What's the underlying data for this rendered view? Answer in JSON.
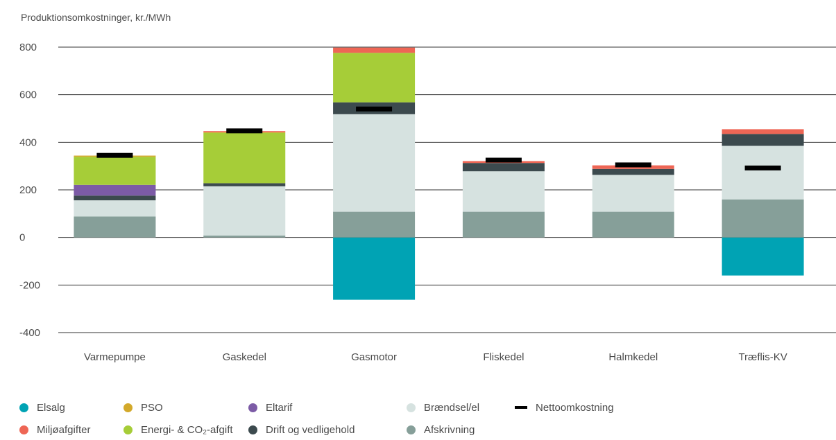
{
  "chart_data": {
    "type": "stacked-bar",
    "ylabel": "Produktionsomkostninger, kr./MWh",
    "ylim": [
      -400,
      800
    ],
    "yticks": [
      800,
      600,
      400,
      200,
      0,
      -200,
      -400
    ],
    "ytick_labels": [
      "800",
      "600",
      "400",
      "200",
      "0",
      "-200",
      "-400"
    ],
    "grid": true,
    "legend_position": "bottom",
    "categories": [
      "Varmepumpe",
      "Gaskedel",
      "Gasmotor",
      "Fliskedel",
      "Halmkedel",
      "Træflis-KV"
    ],
    "series": [
      {
        "name": "Elsalg",
        "color": "#00a3b4",
        "values": [
          0,
          0,
          -262,
          0,
          0,
          -160
        ]
      },
      {
        "name": "Afskrivning",
        "color": "#869f99",
        "values": [
          88,
          8,
          108,
          108,
          108,
          160
        ]
      },
      {
        "name": "Brændsel/el",
        "color": "#d6e2e0",
        "values": [
          68,
          207,
          410,
          170,
          155,
          225
        ]
      },
      {
        "name": "Drift og vedligehold",
        "color": "#3c4a4e",
        "values": [
          20,
          13,
          50,
          35,
          25,
          50
        ]
      },
      {
        "name": "Eltarif",
        "color": "#7c5ba6",
        "values": [
          45,
          0,
          0,
          0,
          0,
          0
        ]
      },
      {
        "name": "Energi- & CO₂-afgift",
        "color": "#a6cd38",
        "values": [
          118,
          212,
          208,
          0,
          0,
          0
        ]
      },
      {
        "name": "PSO",
        "color": "#d3a92a",
        "values": [
          5,
          2,
          0,
          0,
          0,
          0
        ]
      },
      {
        "name": "Miljøafgifter",
        "color": "#ee6655",
        "values": [
          0,
          5,
          22,
          8,
          15,
          20
        ]
      }
    ],
    "net": {
      "name": "Nettoomkostning",
      "color": "#000000",
      "values": [
        345,
        448,
        540,
        325,
        305,
        292
      ]
    }
  },
  "legend": [
    {
      "label": "Elsalg",
      "color": "#00a3b4",
      "shape": "dot"
    },
    {
      "label": "PSO",
      "color": "#d3a92a",
      "shape": "dot"
    },
    {
      "label": "Eltarif",
      "color": "#7c5ba6",
      "shape": "dot"
    },
    {
      "label": "Brændsel/el",
      "color": "#d6e2e0",
      "shape": "dot"
    },
    {
      "label": "Nettoomkostning",
      "color": "#000000",
      "shape": "dash"
    },
    {
      "label": "Miljøafgifter",
      "color": "#ee6655",
      "shape": "dot"
    },
    {
      "label": "Energi- & CO₂-afgift",
      "color": "#a6cd38",
      "shape": "dot"
    },
    {
      "label": "Drift og vedligehold",
      "color": "#3c4a4e",
      "shape": "dot"
    },
    {
      "label": "Afskrivning",
      "color": "#869f99",
      "shape": "dot"
    }
  ]
}
